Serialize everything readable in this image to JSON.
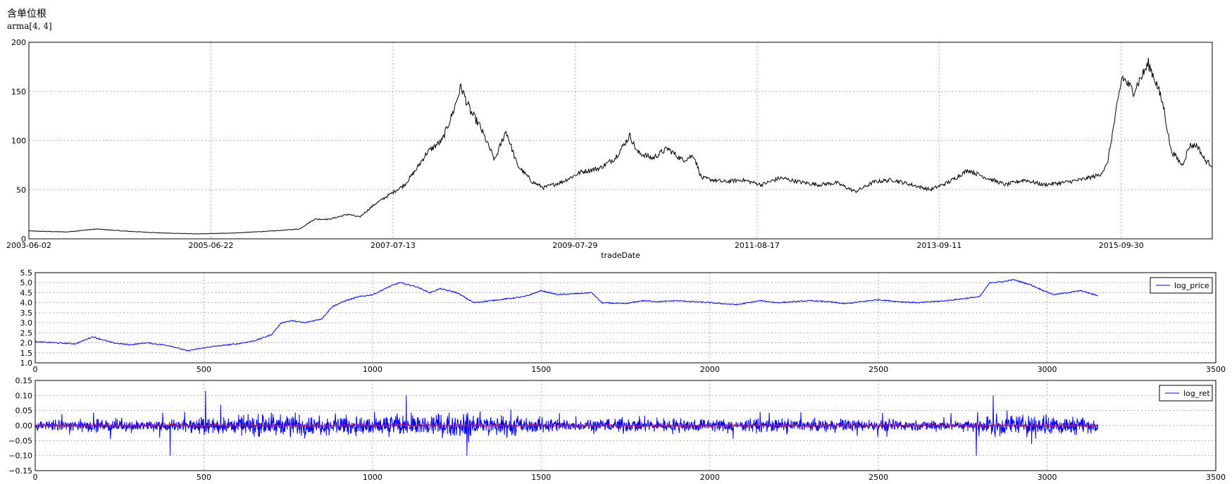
{
  "page": {
    "title_line1": "含单位根",
    "title_line2": "arma[4, 4]"
  },
  "chart_data": [
    {
      "id": "price",
      "type": "line",
      "xlabel": "tradeDate",
      "x_tick_labels": [
        "2003-06-02",
        "2005-06-22",
        "2007-07-13",
        "2009-07-29",
        "2011-08-17",
        "2013-09-11",
        "2015-09-30"
      ],
      "ylim": [
        0,
        200
      ],
      "y_ticks": [
        0,
        50,
        100,
        150,
        200
      ],
      "grid": true,
      "series": [
        {
          "color": "#000000",
          "x_index_range": [
            0,
            3150
          ],
          "keypoints": [
            [
              0,
              8
            ],
            [
              100,
              7
            ],
            [
              180,
              10
            ],
            [
              250,
              8
            ],
            [
              350,
              6
            ],
            [
              450,
              5
            ],
            [
              550,
              6
            ],
            [
              650,
              8
            ],
            [
              720,
              10
            ],
            [
              760,
              20
            ],
            [
              800,
              20
            ],
            [
              850,
              25
            ],
            [
              880,
              22
            ],
            [
              920,
              35
            ],
            [
              960,
              45
            ],
            [
              1000,
              55
            ],
            [
              1030,
              70
            ],
            [
              1060,
              88
            ],
            [
              1100,
              100
            ],
            [
              1130,
              130
            ],
            [
              1150,
              155
            ],
            [
              1175,
              130
            ],
            [
              1200,
              115
            ],
            [
              1240,
              80
            ],
            [
              1270,
              110
            ],
            [
              1300,
              75
            ],
            [
              1340,
              58
            ],
            [
              1370,
              52
            ],
            [
              1420,
              58
            ],
            [
              1470,
              68
            ],
            [
              1520,
              72
            ],
            [
              1560,
              82
            ],
            [
              1600,
              105
            ],
            [
              1620,
              88
            ],
            [
              1660,
              82
            ],
            [
              1700,
              92
            ],
            [
              1740,
              80
            ],
            [
              1770,
              85
            ],
            [
              1790,
              62
            ],
            [
              1850,
              58
            ],
            [
              1900,
              60
            ],
            [
              1950,
              55
            ],
            [
              2000,
              62
            ],
            [
              2050,
              58
            ],
            [
              2100,
              55
            ],
            [
              2150,
              57
            ],
            [
              2200,
              48
            ],
            [
              2250,
              58
            ],
            [
              2300,
              60
            ],
            [
              2350,
              55
            ],
            [
              2400,
              50
            ],
            [
              2450,
              58
            ],
            [
              2500,
              70
            ],
            [
              2550,
              62
            ],
            [
              2600,
              55
            ],
            [
              2650,
              60
            ],
            [
              2700,
              55
            ],
            [
              2750,
              57
            ],
            [
              2800,
              60
            ],
            [
              2850,
              65
            ],
            [
              2870,
              75
            ],
            [
              2890,
              120
            ],
            [
              2910,
              165
            ],
            [
              2940,
              150
            ],
            [
              2980,
              178
            ],
            [
              3000,
              160
            ],
            [
              3020,
              135
            ],
            [
              3040,
              90
            ],
            [
              3070,
              75
            ],
            [
              3090,
              95
            ],
            [
              3110,
              95
            ],
            [
              3130,
              80
            ],
            [
              3150,
              75
            ]
          ]
        }
      ]
    },
    {
      "id": "log_price",
      "type": "line",
      "legend": [
        "log_price"
      ],
      "legend_position": "top-right",
      "xlim": [
        0,
        3500
      ],
      "x_ticks": [
        0,
        500,
        1000,
        1500,
        2000,
        2500,
        3000,
        3500
      ],
      "ylim": [
        1.0,
        5.5
      ],
      "y_ticks": [
        "1.0",
        "1.5",
        "2.0",
        "2.5",
        "3.0",
        "3.5",
        "4.0",
        "4.5",
        "5.0",
        "5.5"
      ],
      "grid": true,
      "series": [
        {
          "name": "log_price",
          "color": "#0000ff",
          "keypoints": [
            [
              0,
              2.05
            ],
            [
              60,
              2.0
            ],
            [
              120,
              1.95
            ],
            [
              170,
              2.3
            ],
            [
              230,
              2.0
            ],
            [
              280,
              1.9
            ],
            [
              330,
              2.0
            ],
            [
              400,
              1.85
            ],
            [
              450,
              1.6
            ],
            [
              520,
              1.8
            ],
            [
              600,
              1.95
            ],
            [
              650,
              2.1
            ],
            [
              700,
              2.4
            ],
            [
              730,
              3.0
            ],
            [
              760,
              3.1
            ],
            [
              800,
              3.0
            ],
            [
              850,
              3.2
            ],
            [
              880,
              3.8
            ],
            [
              920,
              4.1
            ],
            [
              960,
              4.3
            ],
            [
              1000,
              4.4
            ],
            [
              1050,
              4.8
            ],
            [
              1080,
              5.0
            ],
            [
              1130,
              4.8
            ],
            [
              1170,
              4.5
            ],
            [
              1200,
              4.7
            ],
            [
              1250,
              4.5
            ],
            [
              1300,
              4.0
            ],
            [
              1350,
              4.1
            ],
            [
              1400,
              4.2
            ],
            [
              1450,
              4.3
            ],
            [
              1500,
              4.6
            ],
            [
              1550,
              4.4
            ],
            [
              1600,
              4.45
            ],
            [
              1650,
              4.5
            ],
            [
              1680,
              4.0
            ],
            [
              1750,
              3.95
            ],
            [
              1800,
              4.1
            ],
            [
              1850,
              4.05
            ],
            [
              1900,
              4.1
            ],
            [
              2000,
              4.0
            ],
            [
              2080,
              3.9
            ],
            [
              2150,
              4.1
            ],
            [
              2200,
              4.0
            ],
            [
              2300,
              4.1
            ],
            [
              2350,
              4.05
            ],
            [
              2400,
              3.95
            ],
            [
              2500,
              4.15
            ],
            [
              2560,
              4.05
            ],
            [
              2620,
              4.0
            ],
            [
              2700,
              4.1
            ],
            [
              2800,
              4.3
            ],
            [
              2830,
              5.0
            ],
            [
              2870,
              5.05
            ],
            [
              2900,
              5.15
            ],
            [
              2950,
              4.9
            ],
            [
              2990,
              4.6
            ],
            [
              3020,
              4.4
            ],
            [
              3060,
              4.5
            ],
            [
              3100,
              4.6
            ],
            [
              3150,
              4.35
            ]
          ]
        }
      ]
    },
    {
      "id": "log_ret",
      "type": "line",
      "legend": [
        "log_ret"
      ],
      "legend_position": "top-right",
      "xlim": [
        0,
        3500
      ],
      "x_ticks": [
        0,
        500,
        1000,
        1500,
        2000,
        2500,
        3000,
        3500
      ],
      "ylim": [
        -0.15,
        0.15
      ],
      "y_ticks": [
        "−0.15",
        "−0.10",
        "−0.05",
        "0.00",
        "0.05",
        "0.10",
        "0.15"
      ],
      "grid": true,
      "series": [
        {
          "name": "log_ret",
          "color": "#0000ff",
          "x_index_range": [
            0,
            3150
          ],
          "amplitude_range": [
            -0.1,
            0.1
          ],
          "peak_values": [
            [
              505,
              0.115
            ],
            [
              400,
              -0.1
            ],
            [
              1280,
              -0.1
            ],
            [
              2790,
              -0.1
            ],
            [
              1100,
              0.1
            ],
            [
              2840,
              0.1
            ]
          ]
        },
        {
          "color": "#ff0000",
          "x_index_range": [
            0,
            3150
          ],
          "values_near": 0.0
        }
      ]
    }
  ]
}
